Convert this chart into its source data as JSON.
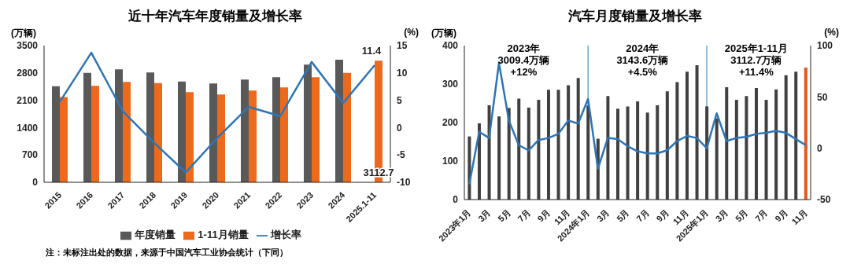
{
  "chart_data": [
    {
      "type": "bar",
      "title": "近十年汽车年度销量及增长率",
      "ylabel": "(万辆)",
      "y2label": "(%)",
      "categories": [
        "2015",
        "2016",
        "2017",
        "2018",
        "2019",
        "2020",
        "2021",
        "2022",
        "2023",
        "2024",
        "2025.1-11"
      ],
      "series": [
        {
          "name": "年度销量",
          "color": "#595959",
          "values": [
            2460,
            2800,
            2890,
            2810,
            2580,
            2530,
            2630,
            2690,
            3010,
            3140,
            null
          ]
        },
        {
          "name": "1-11月销量",
          "color": "#ed6a1c",
          "values": [
            2180,
            2470,
            2570,
            2540,
            2310,
            2250,
            2350,
            2430,
            2690,
            2800,
            3112.7
          ],
          "value_labels": [
            null,
            null,
            null,
            null,
            null,
            null,
            null,
            null,
            null,
            null,
            "3112.7"
          ]
        },
        {
          "name": "增长率",
          "type": "line",
          "axis": "y2",
          "color": "#2e75b6",
          "values": [
            4.7,
            13.7,
            3.0,
            -2.8,
            -8.2,
            -1.9,
            3.8,
            2.1,
            12,
            4.5,
            11.4
          ],
          "value_labels": [
            null,
            null,
            null,
            null,
            null,
            null,
            null,
            null,
            null,
            null,
            "11.4"
          ]
        }
      ],
      "ylim": [
        0,
        3500
      ],
      "yticks": [
        0,
        700,
        1400,
        2100,
        2800,
        3500
      ],
      "y2lim": [
        -10,
        15
      ],
      "y2ticks": [
        -10,
        -5,
        0,
        5,
        10,
        15
      ],
      "legend": "bottom",
      "marker": "none",
      "annotations": [
        "注：未标注出处的数据，来源于中国汽车工业协会统计（下同）"
      ]
    },
    {
      "type": "bar",
      "title": "汽车月度销量及增长率",
      "ylabel": "(万辆)",
      "y2label": "(%)",
      "categories": [
        "2023年1月",
        null,
        "3月",
        null,
        "5月",
        null,
        "7月",
        null,
        "9月",
        null,
        "11月",
        null,
        "2024年1月",
        null,
        "3月",
        null,
        "5月",
        null,
        "7月",
        null,
        "9月",
        null,
        "11月",
        null,
        "2025年1月",
        null,
        "3月",
        null,
        "5月",
        null,
        "7月",
        null,
        "9月",
        null,
        "11月"
      ],
      "series": [
        {
          "color": "#404040",
          "colors": [
            "#404040",
            "#404040",
            "#404040",
            "#404040",
            "#404040",
            "#404040",
            "#404040",
            "#404040",
            "#404040",
            "#404040",
            "#404040",
            "#404040",
            "#404040",
            "#404040",
            "#404040",
            "#404040",
            "#404040",
            "#404040",
            "#404040",
            "#404040",
            "#404040",
            "#404040",
            "#404040",
            "#404040",
            "#404040",
            "#404040",
            "#404040",
            "#404040",
            "#404040",
            "#404040",
            "#404040",
            "#404040",
            "#404040",
            "#404040",
            "#e8571a"
          ],
          "values": [
            164,
            198,
            245,
            216,
            238,
            262,
            239,
            259,
            285,
            285,
            297,
            316,
            244,
            158,
            269,
            236,
            242,
            255,
            226,
            245,
            281,
            305,
            332,
            349,
            242,
            211,
            292,
            259,
            269,
            290,
            259,
            286,
            323,
            332,
            343
          ]
        },
        {
          "type": "line",
          "axis": "y2",
          "color": "#2e75b6",
          "values": [
            -35,
            16,
            10,
            83,
            27,
            3,
            -2,
            8,
            10,
            14,
            27,
            24,
            48,
            -20,
            10,
            9,
            2,
            -3,
            -5,
            -5,
            -2,
            7,
            12,
            10,
            0,
            34,
            7,
            10,
            11,
            14,
            15,
            17,
            15,
            9,
            3
          ]
        }
      ],
      "ylim": [
        0,
        400
      ],
      "yticks": [
        0,
        100,
        200,
        300,
        400
      ],
      "y2lim": [
        -50,
        100
      ],
      "y2ticks": [
        -50,
        0,
        50,
        100
      ],
      "legend": false,
      "marker": "none",
      "ref_lines": [
        {
          "axis": "x",
          "value": "2024年1月",
          "color": "#2e75b6"
        },
        {
          "axis": "x",
          "value": "2025年1月",
          "color": "#2e75b6"
        }
      ],
      "annotations": [
        "2023年\n3009.4万辆\n+12%",
        "2024年\n3143.6万辆\n+4.5%",
        "2025年1-11月\n3112.7万辆\n+11.4%"
      ]
    }
  ]
}
